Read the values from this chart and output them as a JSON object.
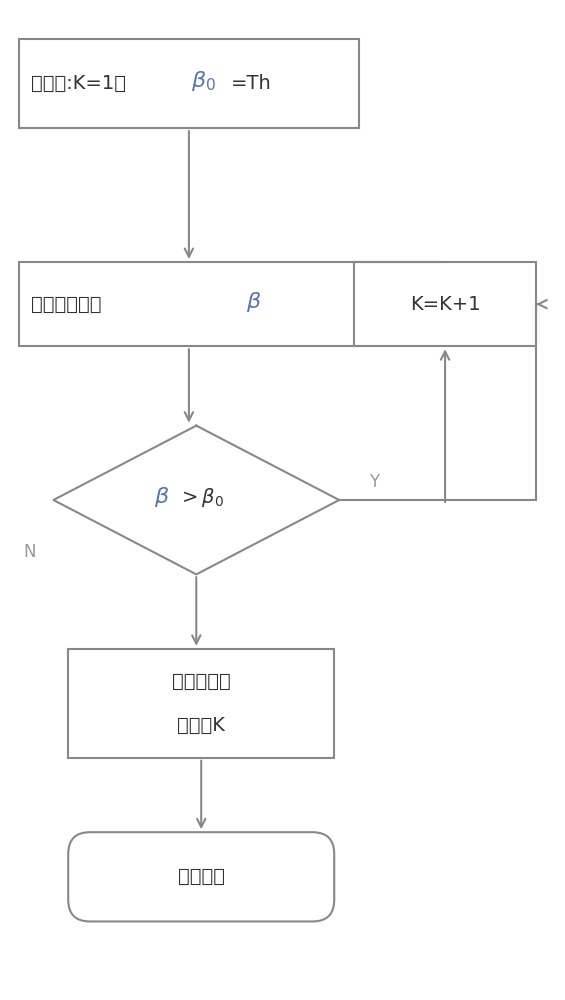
{
  "bg_color": "#ffffff",
  "line_color": "#888888",
  "text_color": "#333333",
  "beta_color": "#5577aa",
  "fig_width": 5.65,
  "fig_height": 10.0,
  "init_text_cn": "初始化:K=1，",
  "init_text_eq": "=Th",
  "calc_text_cn": "计算能量比率 ",
  "kk1_text": "K=K+1",
  "output_text1": "输出滤波器",
  "output_text2": "组层数K",
  "end_text": "结束滤波",
  "label_y": "Y",
  "label_n": "N"
}
